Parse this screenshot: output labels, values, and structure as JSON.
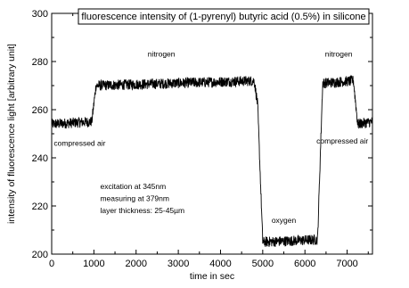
{
  "chart_data": {
    "type": "line",
    "title": "fluorescence intensity of (1-pyrenyl) butyric acid (0.5%) in silicone",
    "xlabel": "time in sec",
    "ylabel": "intensity of fluorescence light [arbitrary unit]",
    "xlim": [
      0,
      7600
    ],
    "ylim": [
      200,
      300
    ],
    "xticks": [
      0,
      1000,
      2000,
      3000,
      4000,
      5000,
      6000,
      7000
    ],
    "yticks": [
      200,
      220,
      240,
      260,
      280,
      300
    ],
    "grid": false,
    "title_box": true,
    "line_color": "#000000",
    "series": [
      {
        "x": [
          0,
          950,
          1050,
          4800,
          4880,
          5000,
          6300,
          6420,
          7150,
          7250,
          7600
        ],
        "y": [
          254,
          255,
          270,
          272,
          262,
          205,
          206,
          271,
          272,
          254,
          255
        ],
        "noise": 2.2
      }
    ],
    "annotations": [
      {
        "text": "nitrogen",
        "x": 2600,
        "y": 282
      },
      {
        "text": "compressed air",
        "x": 50,
        "y": 245
      },
      {
        "text": "oxygen",
        "x": 5500,
        "y": 213
      },
      {
        "text": "nitrogen",
        "x": 6800,
        "y": 282
      },
      {
        "text": "compressed air",
        "x": 7500,
        "y": 246
      },
      {
        "text": "excitation at 345nm",
        "x": 1150,
        "y": 227
      },
      {
        "text": "measuring at 379nm",
        "x": 1150,
        "y": 222
      },
      {
        "text": "layer thickness: 25-45µm",
        "x": 1150,
        "y": 217
      }
    ]
  }
}
